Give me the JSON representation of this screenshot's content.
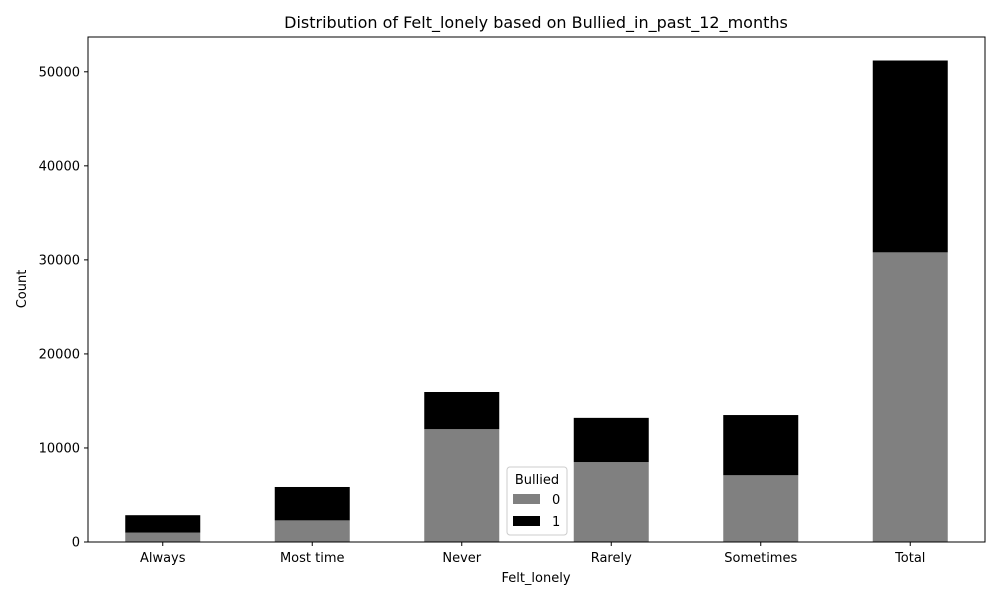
{
  "chart_data": {
    "type": "bar",
    "stacked": true,
    "title": "Distribution of Felt_lonely based on Bullied_in_past_12_months",
    "xlabel": "Felt_lonely",
    "ylabel": "Count",
    "categories": [
      "Always",
      "Most time",
      "Never",
      "Rarely",
      "Sometimes",
      "Total"
    ],
    "ylim": [
      0,
      53700
    ],
    "yticks": [
      0,
      10000,
      20000,
      30000,
      40000,
      50000
    ],
    "grid": false,
    "legend": {
      "title": "Bullied",
      "placement": "bottom-center"
    },
    "series": [
      {
        "name": "0",
        "color": "#808080",
        "values": [
          1000,
          2300,
          12000,
          8500,
          7100,
          30800
        ]
      },
      {
        "name": "1",
        "color": "#000000",
        "values": [
          1850,
          3550,
          3950,
          4700,
          6400,
          20400
        ]
      }
    ]
  }
}
